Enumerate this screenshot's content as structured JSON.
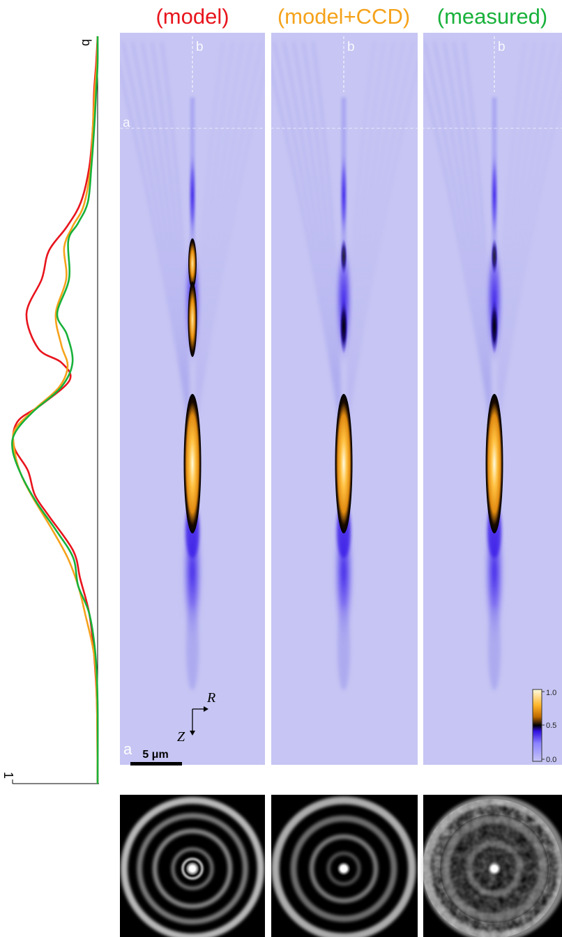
{
  "titles": {
    "model": "(model)",
    "model_ccd": "(model+CCD)",
    "measured": "(measured)"
  },
  "labels": {
    "line_a": "a",
    "line_b": "b",
    "profile_b": "b",
    "profile_one": "1",
    "axis_r": "R",
    "axis_z": "Z",
    "scale_bar": "5 μm",
    "inset_a": "a"
  },
  "colorbar": {
    "ticks": [
      "1.0",
      "0.5",
      "0.0"
    ],
    "colors": [
      "#fffbe0",
      "#ffb52a",
      "#f09010",
      "#000000",
      "#3010e0",
      "#8c84ff",
      "#c8c6f6"
    ]
  },
  "colors": {
    "model": "#e8141c",
    "model_ccd": "#f5a21a",
    "measured": "#18b13a",
    "background": "#c6c5f3"
  }
}
